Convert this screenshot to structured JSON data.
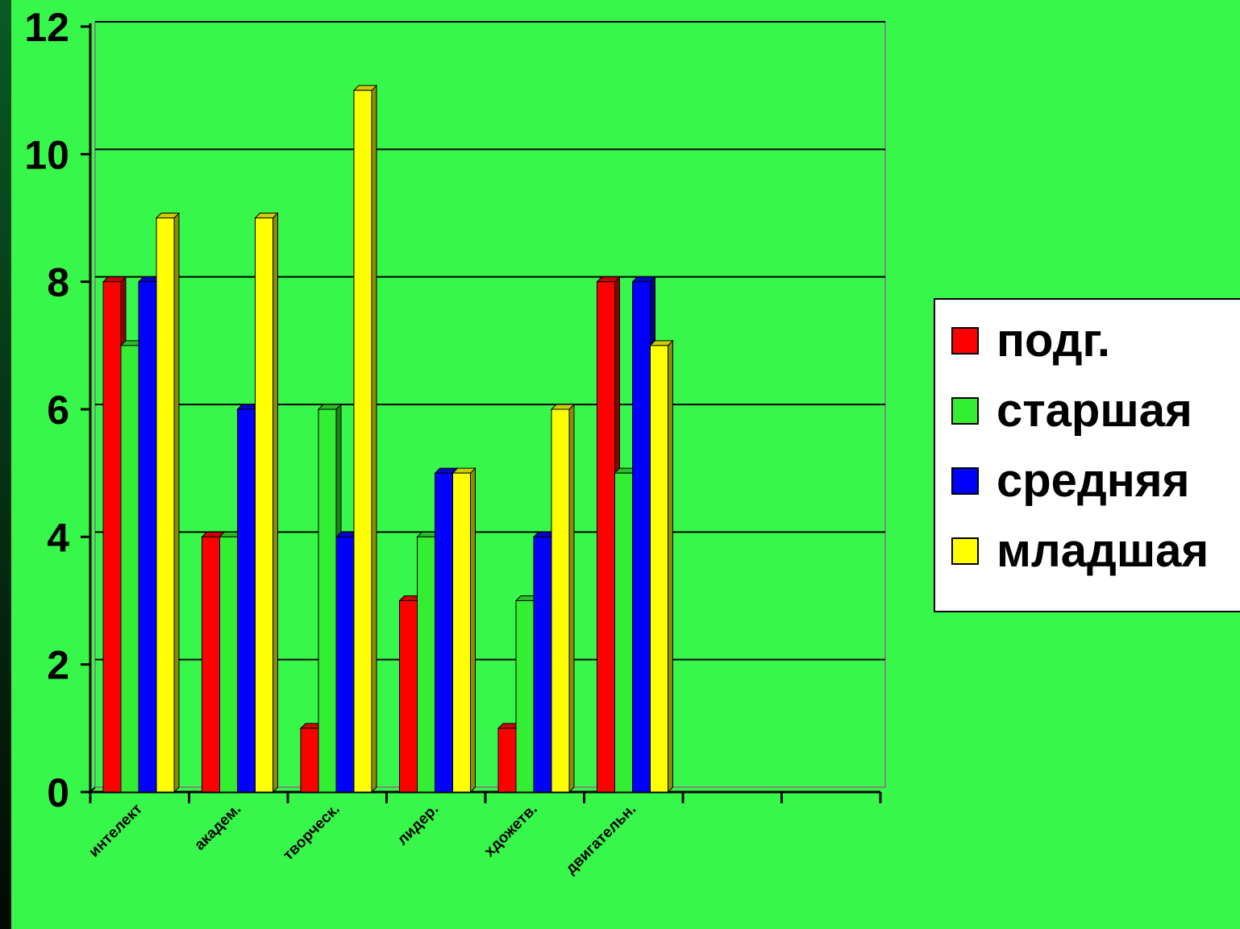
{
  "colors": {
    "background": "#37f84a",
    "gridline": "#000000",
    "legend_background": "#ffffff"
  },
  "chart_data": {
    "type": "bar",
    "style": "3d-clustered",
    "categories": [
      "интелект",
      "академ.",
      "творческ.",
      "лидер.",
      "хдожетв.",
      "двигательн.",
      "",
      ""
    ],
    "series": [
      {
        "name": "подг.",
        "color": "#ff0000",
        "values": [
          8,
          4,
          1,
          3,
          1,
          8,
          null,
          null
        ]
      },
      {
        "name": "старшая",
        "color": "#33ee33",
        "values": [
          7,
          4,
          6,
          4,
          3,
          5,
          null,
          null
        ]
      },
      {
        "name": "средняя",
        "color": "#0000ff",
        "values": [
          8,
          6,
          4,
          5,
          4,
          8,
          null,
          null
        ]
      },
      {
        "name": "младшая",
        "color": "#ffff00",
        "values": [
          9,
          9,
          11,
          5,
          6,
          7,
          null,
          null
        ]
      }
    ],
    "yticks": [
      "0",
      "2",
      "4",
      "6",
      "8",
      "10",
      "12"
    ],
    "ylim": [
      0,
      12
    ],
    "title": "",
    "xlabel": "",
    "ylabel": "",
    "grid": true,
    "legend_position": "right"
  }
}
